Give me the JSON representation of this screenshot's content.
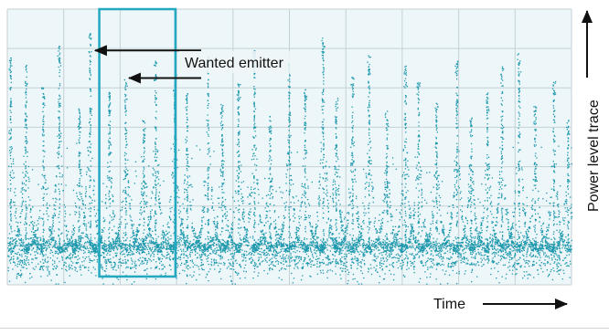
{
  "chart_data": {
    "type": "scatter",
    "title": "",
    "xlabel": "Time",
    "ylabel": "Power level trace",
    "xlim": [
      0,
      100
    ],
    "ylim": [
      0,
      100
    ],
    "grid": true,
    "colors": {
      "plot_background": "#edf6f8",
      "grid": "#c4d2d6",
      "dots": "#1c98ad",
      "highlight_box": "#22a8c0",
      "arrows": "#111111"
    },
    "noise_floor_level": 13,
    "series": [
      {
        "values_description_free": true,
        "pulse_peaks": [
          {
            "x": 0.5,
            "y": 84
          },
          {
            "x": 3.2,
            "y": 80
          },
          {
            "x": 6.3,
            "y": 72
          },
          {
            "x": 9.1,
            "y": 87
          },
          {
            "x": 12.7,
            "y": 65
          },
          {
            "x": 14.6,
            "y": 92
          },
          {
            "x": 18.0,
            "y": 70
          },
          {
            "x": 20.9,
            "y": 75
          },
          {
            "x": 24.1,
            "y": 60
          },
          {
            "x": 26.2,
            "y": 82
          },
          {
            "x": 29.6,
            "y": 78
          },
          {
            "x": 31.8,
            "y": 70
          },
          {
            "x": 35.5,
            "y": 84
          },
          {
            "x": 38.0,
            "y": 66
          },
          {
            "x": 40.9,
            "y": 74
          },
          {
            "x": 43.7,
            "y": 86
          },
          {
            "x": 46.5,
            "y": 62
          },
          {
            "x": 49.9,
            "y": 81
          },
          {
            "x": 52.7,
            "y": 72
          },
          {
            "x": 55.9,
            "y": 90
          },
          {
            "x": 58.2,
            "y": 68
          },
          {
            "x": 61.1,
            "y": 76
          },
          {
            "x": 64.0,
            "y": 84
          },
          {
            "x": 67.2,
            "y": 64
          },
          {
            "x": 70.5,
            "y": 80
          },
          {
            "x": 72.8,
            "y": 74
          },
          {
            "x": 76.0,
            "y": 66
          },
          {
            "x": 79.6,
            "y": 82
          },
          {
            "x": 82.1,
            "y": 62
          },
          {
            "x": 85.0,
            "y": 70
          },
          {
            "x": 87.6,
            "y": 80
          },
          {
            "x": 90.6,
            "y": 84
          },
          {
            "x": 93.5,
            "y": 66
          },
          {
            "x": 96.8,
            "y": 74
          },
          {
            "x": 99.3,
            "y": 60
          }
        ]
      }
    ],
    "highlight": {
      "x_range": [
        16.3,
        29.8
      ],
      "y_range": [
        3,
        100
      ]
    },
    "annotation": {
      "text": "Wanted emitter",
      "arrow_targets": [
        {
          "x": 14.9,
          "y": 85
        },
        {
          "x": 20.9,
          "y": 75
        }
      ]
    }
  }
}
